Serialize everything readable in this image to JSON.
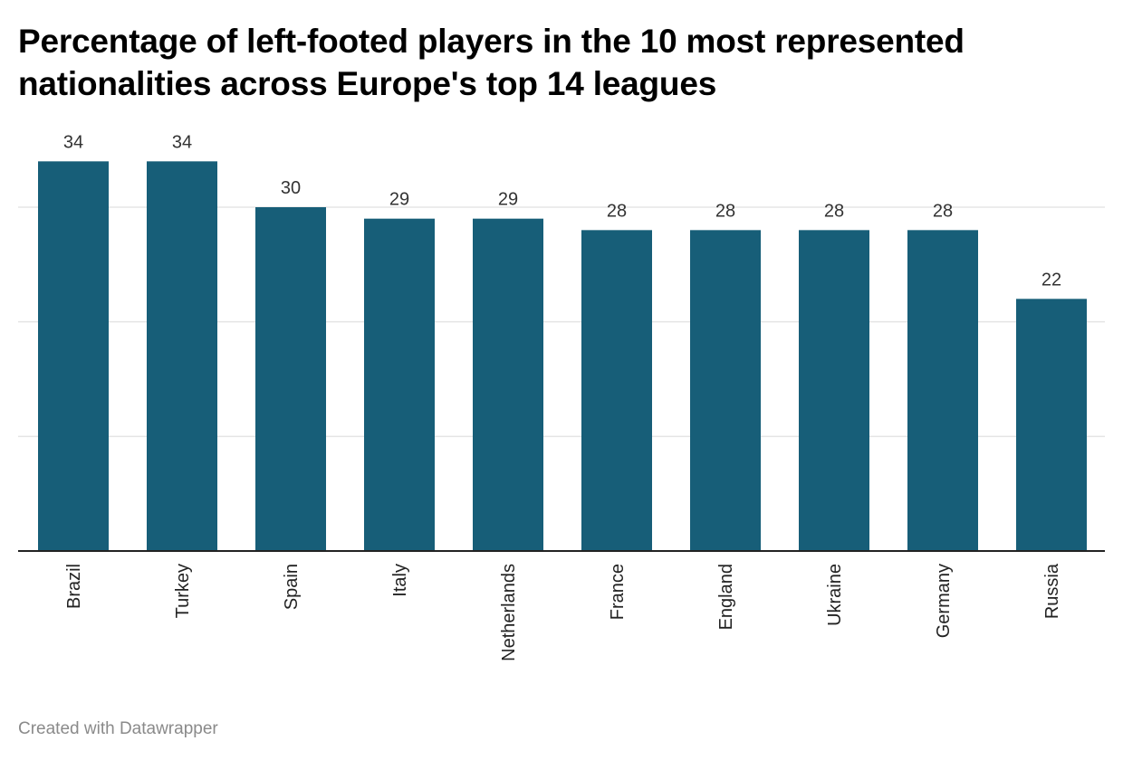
{
  "title": "Percentage of left-footed players in the 10 most represented nationalities across Europe's top 14 leagues",
  "footer": "Created with Datawrapper",
  "colors": {
    "bar": "#175e78",
    "grid": "#e5e5e5",
    "axis": "#222222"
  },
  "chart_data": {
    "type": "bar",
    "title": "Percentage of left-footed players in the 10 most represented nationalities across Europe's top 14 leagues",
    "categories": [
      "Brazil",
      "Turkey",
      "Spain",
      "Italy",
      "Netherlands",
      "France",
      "England",
      "Ukraine",
      "Germany",
      "Russia"
    ],
    "values": [
      34,
      34,
      30,
      29,
      29,
      28,
      28,
      28,
      28,
      22
    ],
    "value_labels": [
      "34",
      "34",
      "30",
      "29",
      "29",
      "28",
      "28",
      "28",
      "28",
      "22"
    ],
    "xlabel": "",
    "ylabel": "",
    "ylim": [
      0,
      30
    ],
    "grid": true,
    "gridlines": [
      10,
      20,
      30
    ],
    "category_label_orientation": "vertical"
  }
}
